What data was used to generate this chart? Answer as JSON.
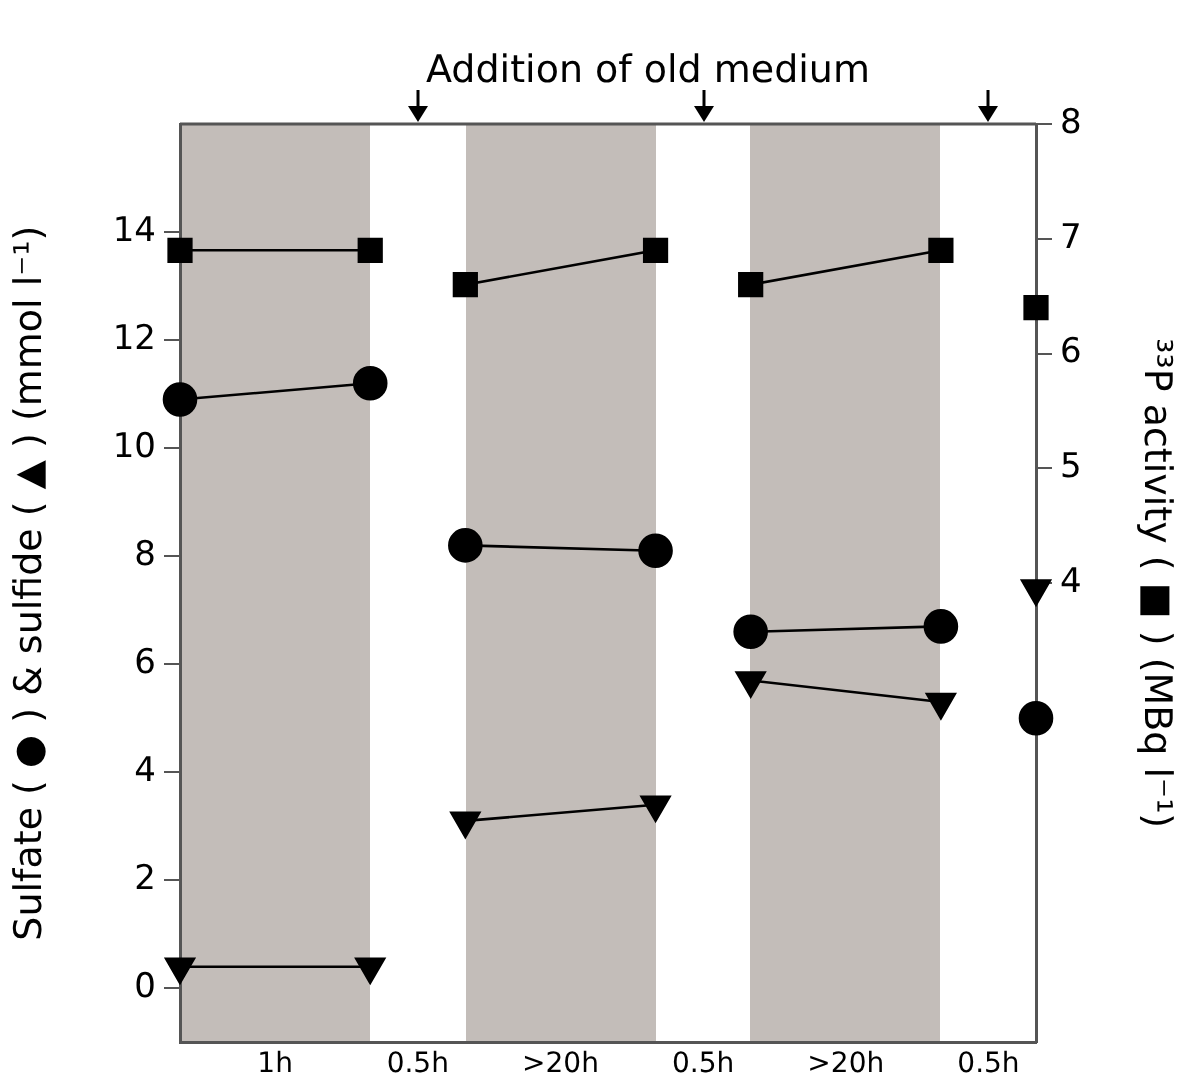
{
  "chart_data": {
    "type": "line",
    "ylabel": "Sulfate ( ● ) & sulfide ( ▲ ) (mmol l⁻¹)",
    "y2label": "³³P activity ( ■ ) (MBq l⁻¹)",
    "annotations": [
      "Addition of old medium"
    ],
    "categories": [
      null,
      null,
      "1h",
      null,
      null,
      "0.5h",
      null,
      null,
      ">20h",
      null,
      null,
      "0.5h",
      null,
      null,
      ">20h",
      null,
      null,
      "0.5h",
      null
    ],
    "ylim": [
      -1,
      16
    ],
    "yticks": [
      0,
      2,
      4,
      6,
      8,
      10,
      12,
      14
    ],
    "y2lim": [
      0,
      8
    ],
    "y2ticks": [
      4,
      5,
      6,
      7,
      8
    ],
    "grid": false,
    "legend": false,
    "series": [
      {
        "color": "#000000",
        "marker": "circle",
        "values": [
          10.9,
          null,
          null,
          null,
          11.2,
          null,
          null,
          null,
          null,
          null,
          null,
          null,
          null,
          null,
          null,
          null,
          null,
          null,
          null
        ]
      },
      {
        "color": "#000000",
        "marker": "circle",
        "values": [
          null,
          null,
          null,
          null,
          null,
          null,
          8.2,
          null,
          null,
          null,
          8.1,
          null,
          null,
          null,
          null,
          null,
          null,
          null,
          null
        ]
      },
      {
        "color": "#000000",
        "marker": "circle",
        "values": [
          null,
          null,
          null,
          null,
          null,
          null,
          null,
          null,
          null,
          null,
          null,
          null,
          6.6,
          null,
          null,
          null,
          6.7,
          null,
          null
        ]
      },
      {
        "color": "#000000",
        "marker": "circle",
        "values": [
          null,
          null,
          null,
          null,
          null,
          null,
          null,
          null,
          null,
          null,
          null,
          null,
          null,
          null,
          null,
          null,
          null,
          null,
          5.0
        ]
      },
      {
        "color": "#000000",
        "marker": "triangle",
        "values": [
          0.4,
          null,
          null,
          null,
          0.4,
          null,
          null,
          null,
          null,
          null,
          null,
          null,
          null,
          null,
          null,
          null,
          null,
          null,
          null
        ]
      },
      {
        "color": "#000000",
        "marker": "triangle",
        "values": [
          null,
          null,
          null,
          null,
          null,
          null,
          3.1,
          null,
          null,
          null,
          3.4,
          null,
          null,
          null,
          null,
          null,
          null,
          null,
          null
        ]
      },
      {
        "color": "#000000",
        "marker": "triangle",
        "values": [
          null,
          null,
          null,
          null,
          null,
          null,
          null,
          null,
          null,
          null,
          null,
          null,
          5.7,
          null,
          null,
          null,
          5.3,
          null,
          null
        ]
      },
      {
        "color": "#000000",
        "marker": "triangle",
        "values": [
          null,
          null,
          null,
          null,
          null,
          null,
          null,
          null,
          null,
          null,
          null,
          null,
          null,
          null,
          null,
          null,
          null,
          null,
          7.4
        ]
      },
      {
        "color": "#000000",
        "marker": "square",
        "axis": "y2",
        "values": [
          6.9,
          null,
          null,
          null,
          6.9,
          null,
          null,
          null,
          null,
          null,
          null,
          null,
          null,
          null,
          null,
          null,
          null,
          null,
          null
        ]
      },
      {
        "color": "#000000",
        "marker": "square",
        "axis": "y2",
        "values": [
          null,
          null,
          null,
          null,
          null,
          null,
          6.6,
          null,
          null,
          null,
          6.9,
          null,
          null,
          null,
          null,
          null,
          null,
          null,
          null
        ]
      },
      {
        "color": "#000000",
        "marker": "square",
        "axis": "y2",
        "values": [
          null,
          null,
          null,
          null,
          null,
          null,
          null,
          null,
          null,
          null,
          null,
          null,
          6.6,
          null,
          null,
          null,
          6.9,
          null,
          null
        ]
      },
      {
        "color": "#000000",
        "marker": "square",
        "axis": "y2",
        "values": [
          null,
          null,
          null,
          null,
          null,
          null,
          null,
          null,
          null,
          null,
          null,
          null,
          null,
          null,
          null,
          null,
          null,
          null,
          6.4
        ]
      }
    ]
  }
}
